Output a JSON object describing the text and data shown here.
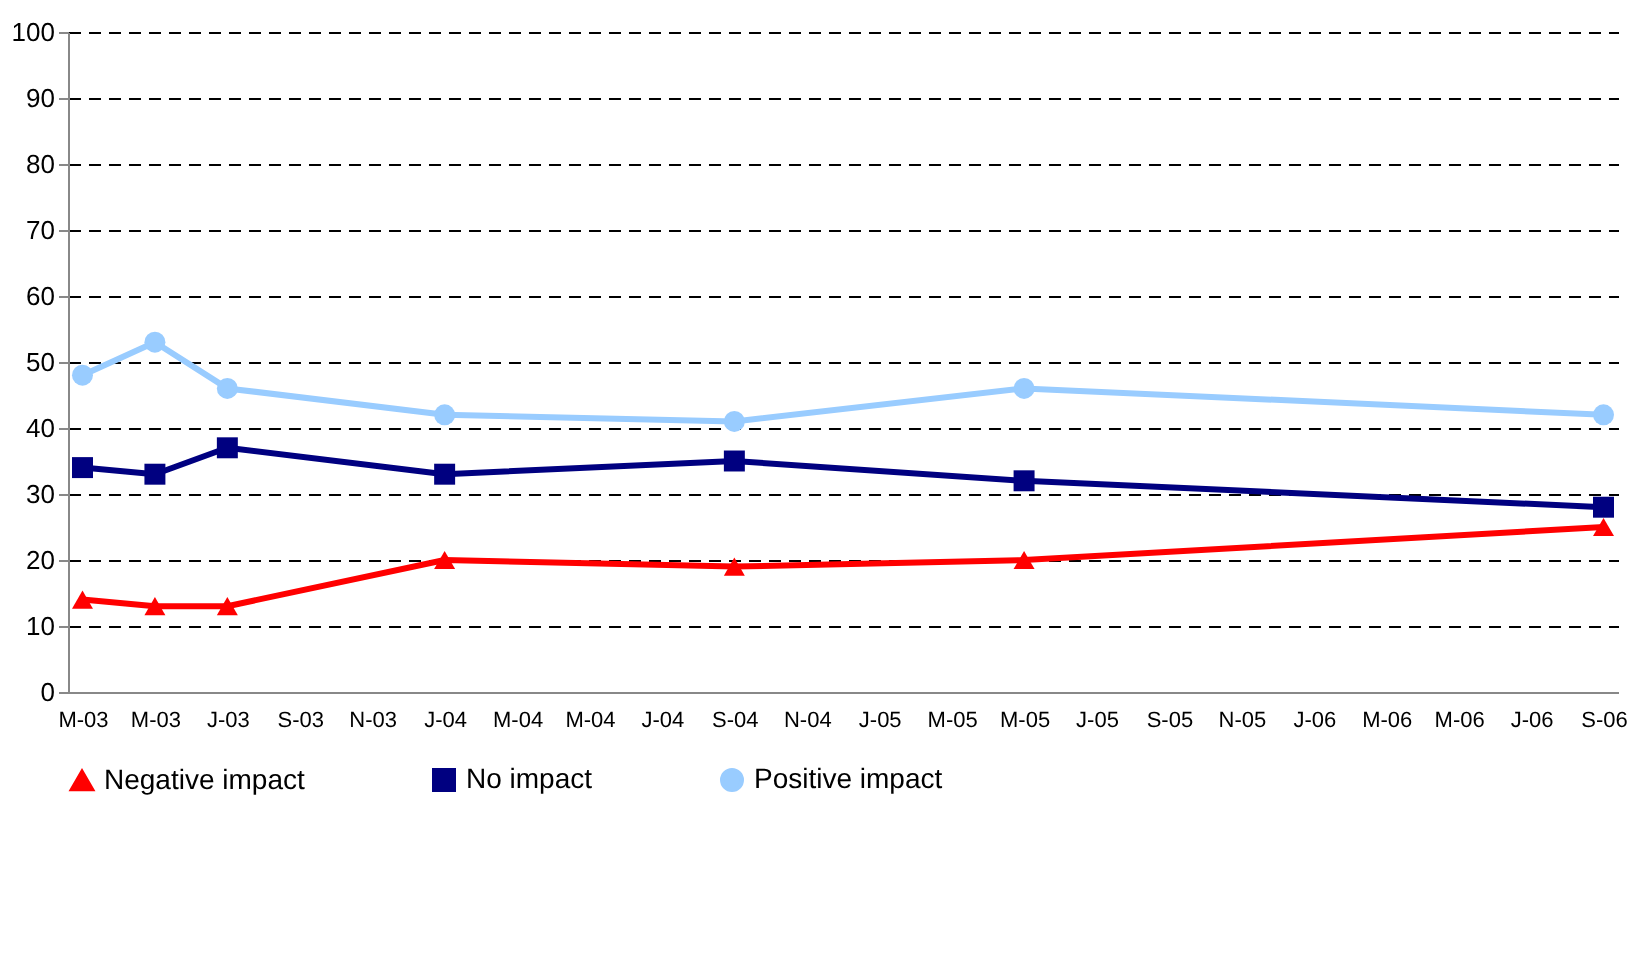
{
  "chart_data": {
    "type": "line",
    "categories": [
      "M-03",
      "M-03",
      "J-03",
      "S-03",
      "N-03",
      "J-04",
      "M-04",
      "M-04",
      "J-04",
      "S-04",
      "N-04",
      "J-05",
      "M-05",
      "M-05",
      "J-05",
      "S-05",
      "N-05",
      "J-06",
      "M-06",
      "M-06",
      "J-06",
      "S-06"
    ],
    "series": [
      {
        "name": "Negative impact",
        "color": "#ff0000",
        "marker": "triangle",
        "values": [
          14,
          13,
          13,
          null,
          null,
          20,
          null,
          null,
          null,
          19,
          null,
          null,
          null,
          20,
          null,
          null,
          null,
          null,
          null,
          null,
          null,
          25
        ]
      },
      {
        "name": "No impact",
        "color": "#000080",
        "marker": "square",
        "values": [
          34,
          33,
          37,
          null,
          null,
          33,
          null,
          null,
          null,
          35,
          null,
          null,
          null,
          32,
          null,
          null,
          null,
          null,
          null,
          null,
          null,
          28
        ]
      },
      {
        "name": "Positive impact",
        "color": "#99ccff",
        "marker": "circle",
        "values": [
          48,
          53,
          46,
          null,
          null,
          42,
          null,
          null,
          null,
          41,
          null,
          null,
          null,
          46,
          null,
          null,
          null,
          null,
          null,
          null,
          null,
          42
        ]
      }
    ],
    "ylim": [
      0,
      100
    ],
    "yticks": [
      0,
      10,
      20,
      30,
      40,
      50,
      60,
      70,
      80,
      90,
      100
    ],
    "grid": "y",
    "legend": "bottom"
  }
}
